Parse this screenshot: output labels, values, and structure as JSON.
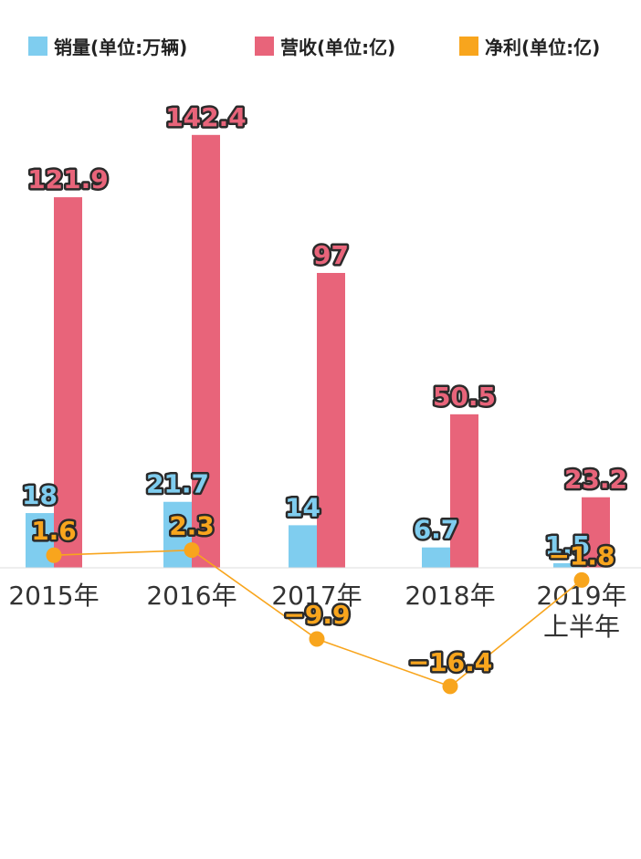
{
  "chart_data": {
    "type": "bar",
    "categories": [
      "2015年",
      "2016年",
      "2017年",
      "2018年",
      "2019年\n上半年"
    ],
    "series": [
      {
        "name": "销量(单位:万辆)",
        "type": "bar",
        "color": "#7FCDEF",
        "values": [
          18,
          21.7,
          14,
          6.7,
          1.5
        ]
      },
      {
        "name": "营收(单位:亿)",
        "type": "bar",
        "color": "#E8647A",
        "values": [
          121.9,
          142.4,
          97,
          50.5,
          23.2
        ]
      },
      {
        "name": "净利(单位:亿)",
        "type": "line",
        "color": "#F8A51D",
        "values": [
          1.6,
          2.3,
          -9.9,
          -16.4,
          -1.8
        ]
      }
    ],
    "value_labels": {
      "sales": [
        "18",
        "21.7",
        "14",
        "6.7",
        "1.5"
      ],
      "revenue": [
        "121.9",
        "142.4",
        "97",
        "50.5",
        "23.2"
      ],
      "profit": [
        "1.6",
        "2.3",
        "−9.9",
        "−16.4",
        "−1.8"
      ]
    },
    "legend_position": "top",
    "grid": false
  }
}
